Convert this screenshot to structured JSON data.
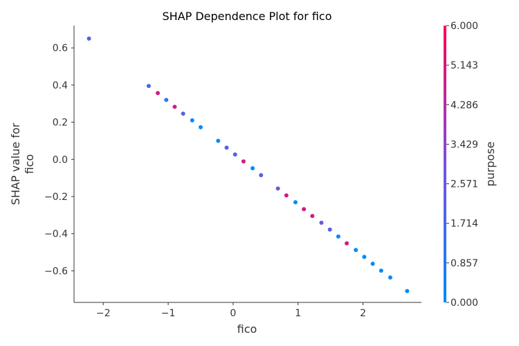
{
  "chart_data": {
    "type": "scatter",
    "title": "SHAP Dependence Plot for fico",
    "xlabel": "fico",
    "ylabel_lines": [
      "SHAP value for",
      "fico"
    ],
    "xlim": [
      -2.45,
      2.9
    ],
    "ylim": [
      -0.77,
      0.72
    ],
    "x_ticks": [
      -2,
      -1,
      0,
      1,
      2
    ],
    "x_tick_labels": [
      "−2",
      "−1",
      "0",
      "1",
      "2"
    ],
    "y_ticks": [
      0.6,
      0.4,
      0.2,
      0.0,
      -0.2,
      -0.4,
      -0.6
    ],
    "y_tick_labels": [
      "0.6",
      "0.4",
      "0.2",
      "0.0",
      "−0.2",
      "−0.4",
      "−0.6"
    ],
    "grid": false,
    "colorbar": {
      "label": "purpose",
      "min": 0,
      "max": 6,
      "ticks": [
        6.0,
        5.143,
        4.286,
        3.429,
        2.571,
        1.714,
        0.857,
        0.0
      ],
      "tick_labels": [
        "6.000",
        "5.143",
        "4.286",
        "3.429",
        "2.571",
        "1.714",
        "0.857",
        "0.000"
      ],
      "colors": [
        "#008bfb",
        "#7a4fdf",
        "#ff0052"
      ]
    },
    "points": [
      {
        "x": -2.22,
        "y": 0.65,
        "c": 2
      },
      {
        "x": -1.3,
        "y": 0.395,
        "c": 2
      },
      {
        "x": -1.16,
        "y": 0.357,
        "c": 5
      },
      {
        "x": -1.03,
        "y": 0.32,
        "c": 1
      },
      {
        "x": -0.9,
        "y": 0.283,
        "c": 5
      },
      {
        "x": -0.77,
        "y": 0.246,
        "c": 2
      },
      {
        "x": -0.63,
        "y": 0.21,
        "c": 0
      },
      {
        "x": -0.5,
        "y": 0.173,
        "c": 0
      },
      {
        "x": -0.23,
        "y": 0.1,
        "c": 0
      },
      {
        "x": -0.1,
        "y": 0.063,
        "c": 2
      },
      {
        "x": 0.03,
        "y": 0.026,
        "c": 2
      },
      {
        "x": 0.16,
        "y": -0.011,
        "c": 5
      },
      {
        "x": 0.3,
        "y": -0.048,
        "c": 0
      },
      {
        "x": 0.43,
        "y": -0.085,
        "c": 2
      },
      {
        "x": 0.69,
        "y": -0.157,
        "c": 3
      },
      {
        "x": 0.82,
        "y": -0.194,
        "c": 5
      },
      {
        "x": 0.96,
        "y": -0.231,
        "c": 0
      },
      {
        "x": 1.09,
        "y": -0.268,
        "c": 5
      },
      {
        "x": 1.22,
        "y": -0.305,
        "c": 5
      },
      {
        "x": 1.36,
        "y": -0.341,
        "c": 3
      },
      {
        "x": 1.49,
        "y": -0.378,
        "c": 2
      },
      {
        "x": 1.62,
        "y": -0.415,
        "c": 0
      },
      {
        "x": 1.75,
        "y": -0.452,
        "c": 5
      },
      {
        "x": 1.89,
        "y": -0.488,
        "c": 0
      },
      {
        "x": 2.02,
        "y": -0.525,
        "c": 0
      },
      {
        "x": 2.15,
        "y": -0.562,
        "c": 0
      },
      {
        "x": 2.28,
        "y": -0.599,
        "c": 0
      },
      {
        "x": 2.42,
        "y": -0.636,
        "c": 0
      },
      {
        "x": 2.68,
        "y": -0.709,
        "c": 0
      }
    ]
  }
}
